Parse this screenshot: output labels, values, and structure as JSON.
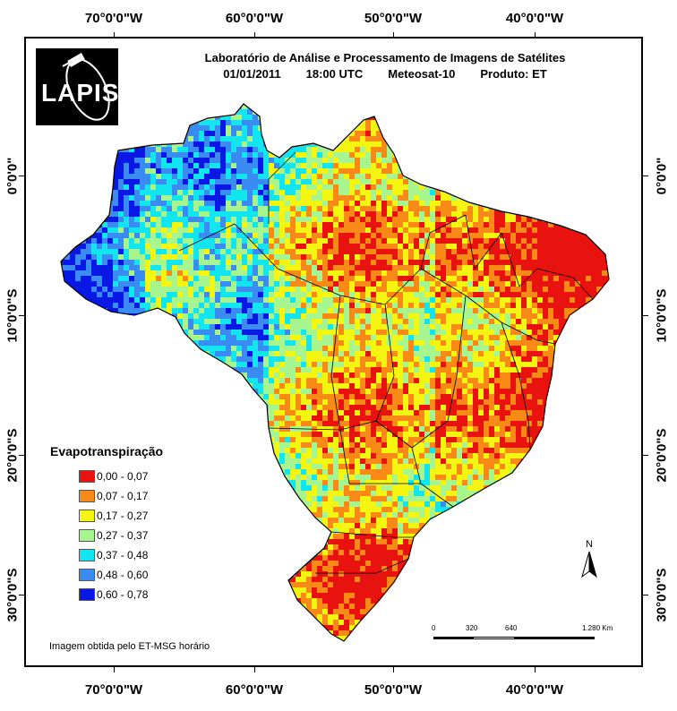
{
  "title_line1": "Laboratório de Análise e Processamento de Imagens de Satélites",
  "title_date": "01/01/2011",
  "title_time": "18:00 UTC",
  "title_satellite": "Meteosat-10",
  "title_product": "Produto: ET",
  "logo_text": "LAPIS",
  "longitude_ticks": [
    "70°0'0\"W",
    "60°0'0\"W",
    "50°0'0\"W",
    "40°0'0\"W"
  ],
  "latitude_ticks": [
    "0°0'0\"",
    "10°0'0\"S",
    "20°0'0\"S",
    "30°0'0\"S"
  ],
  "legend": {
    "title": "Evapotranspiração",
    "classes": [
      {
        "label": "0,00 - 0,07",
        "color": "#e8120f"
      },
      {
        "label": "0,07 - 0,17",
        "color": "#f98a17"
      },
      {
        "label": "0,17 - 0,27",
        "color": "#f4f612"
      },
      {
        "label": "0,27 - 0,37",
        "color": "#a7f58e"
      },
      {
        "label": "0,37 - 0,48",
        "color": "#12e5f0"
      },
      {
        "label": "0,48 - 0,60",
        "color": "#3a8bf2"
      },
      {
        "label": "0,60 - 0,78",
        "color": "#0a18e6"
      }
    ]
  },
  "north_label": "N",
  "scale_labels": [
    "0",
    "320",
    "640",
    "1.280 Km"
  ],
  "footnote": "Imagem obtida pelo ET-MSG horário"
}
